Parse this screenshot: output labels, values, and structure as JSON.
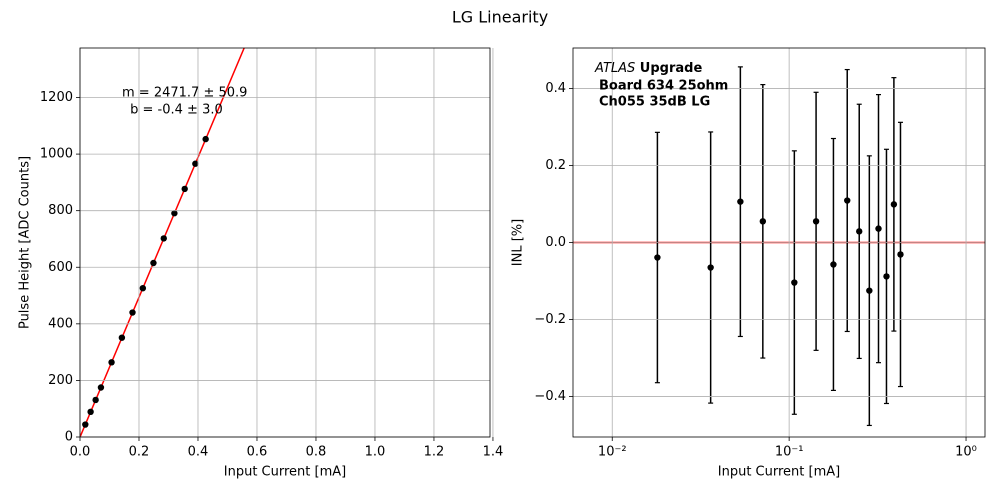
{
  "title": "LG Linearity",
  "chart_data": [
    {
      "type": "scatter",
      "x_label": "Input Current [mA]",
      "y_label": "Pulse Height [ADC Counts]",
      "x": [
        0.018,
        0.036,
        0.053,
        0.071,
        0.107,
        0.142,
        0.178,
        0.213,
        0.249,
        0.284,
        0.32,
        0.355,
        0.391,
        0.426
      ],
      "y": [
        44,
        89,
        131,
        175,
        264,
        351,
        440,
        526,
        615,
        702,
        791,
        877,
        966,
        1053
      ],
      "color": "#000000",
      "fit": {
        "slope": 2471.7,
        "intercept": -0.4,
        "color": "#ff0000"
      },
      "annotations": [
        "m = 2471.7 ± 50.9",
        " b = -0.4 ± 3.0"
      ],
      "xlim": [
        0,
        1.39
      ],
      "ylim": [
        0,
        1375
      ],
      "xticks": [
        {
          "value": 0,
          "label": "0.0"
        },
        0.2,
        0.4,
        0.6,
        0.8,
        {
          "value": 1,
          "label": "1.0"
        },
        1.2,
        1.4
      ],
      "yticks": [
        0,
        200,
        400,
        600,
        800,
        1000,
        1200
      ],
      "grid": true
    },
    {
      "type": "errorbar",
      "x_label": "Input Current [mA]",
      "y_label": "INL [%]",
      "x": [
        0.018,
        0.036,
        0.053,
        0.071,
        0.107,
        0.142,
        0.178,
        0.213,
        0.249,
        0.284,
        0.32,
        0.355,
        0.391,
        0.426
      ],
      "y": [
        -0.039,
        -0.065,
        0.106,
        0.055,
        -0.104,
        0.055,
        -0.057,
        0.109,
        0.029,
        -0.125,
        0.036,
        -0.088,
        0.099,
        -0.031
      ],
      "errors": [
        0.325,
        0.352,
        0.35,
        0.355,
        0.342,
        0.335,
        0.327,
        0.34,
        0.33,
        0.35,
        0.348,
        0.33,
        0.329,
        0.343
      ],
      "color": "#000000",
      "hline": {
        "value": 0,
        "color": "#ff0000"
      },
      "annotations": [
        "ATLAS",
        " Upgrade",
        "Board 634 25ohm",
        "Ch055 35dB LG"
      ],
      "xscale": "log",
      "xlim": [
        0.006,
        1.28
      ],
      "ylim": [
        -0.505,
        0.505
      ],
      "xticks": [
        {
          "value": 0.01,
          "label": "10⁻²"
        },
        {
          "value": 0.1,
          "label": "10⁻¹"
        },
        {
          "value": 1,
          "label": "10⁰"
        }
      ],
      "yticks": [
        {
          "value": -0.4,
          "label": "−0.4"
        },
        {
          "value": -0.2,
          "label": "−0.2"
        },
        {
          "value": 0,
          "label": "0.0"
        },
        0.2,
        0.4
      ],
      "grid": true
    }
  ]
}
